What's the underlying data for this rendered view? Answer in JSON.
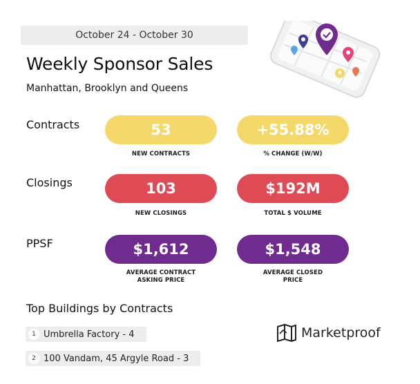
{
  "header": {
    "date_range": "October 24 - October 30",
    "title": "Weekly Sponsor Sales",
    "subtitle": "Manhattan, Brooklyn and Queens"
  },
  "metrics": {
    "contracts": {
      "label": "Contracts",
      "new_contracts_value": "53",
      "new_contracts_caption": "NEW CONTRACTS",
      "change_value": "+55.88%",
      "change_caption": "% CHANGE (W/W)"
    },
    "closings": {
      "label": "Closings",
      "new_closings_value": "103",
      "new_closings_caption": "NEW CLOSINGS",
      "volume_value": "$192M",
      "volume_caption": "TOTAL $ VOLUME"
    },
    "ppsf": {
      "label": "PPSF",
      "contract_value": "$1,612",
      "contract_caption_line1": "AVERAGE CONTRACT",
      "contract_caption_line2": "ASKING PRICE",
      "closed_value": "$1,548",
      "closed_caption_line1": "AVERAGE CLOSED",
      "closed_caption_line2": "PRICE"
    }
  },
  "top_buildings": {
    "title": "Top Buildings by Contracts",
    "items": [
      {
        "rank": "1",
        "label": "Umbrella Factory - 4"
      },
      {
        "rank": "2",
        "label": "100 Vandam, 45 Argyle Road - 3"
      }
    ]
  },
  "brand": {
    "name": "Marketproof",
    "icon": "marketproof-logo-icon"
  },
  "illustration": {
    "icon": "phone-map-pins-icon"
  },
  "colors": {
    "yellow": "#f4d86a",
    "red": "#df4b55",
    "purple": "#6f2b8e"
  }
}
